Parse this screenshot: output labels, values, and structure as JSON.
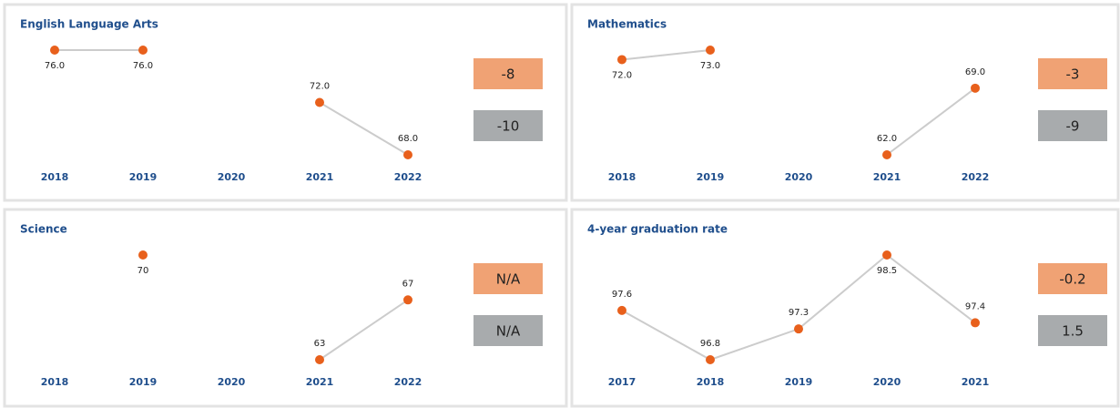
{
  "chart_data": [
    {
      "type": "line",
      "title": "English Language Arts",
      "categories": [
        "2018",
        "2019",
        "2020",
        "2021",
        "2022"
      ],
      "values": [
        76,
        76,
        null,
        72,
        68
      ],
      "value_labels": [
        "76.0",
        "76.0",
        null,
        "72.0",
        "68.0"
      ],
      "changes": [
        -8,
        -10
      ],
      "change_colors": [
        "#f0a274",
        "#a8abad"
      ],
      "color": "#e8601c"
    },
    {
      "type": "line",
      "title": "Mathematics",
      "categories": [
        "2018",
        "2019",
        "2020",
        "2021",
        "2022"
      ],
      "values": [
        72,
        73,
        null,
        62,
        69
      ],
      "value_labels": [
        "72.0",
        "73.0",
        null,
        "62.0",
        "69.0"
      ],
      "changes": [
        -3,
        -9
      ],
      "change_colors": [
        "#f0a274",
        "#a8abad"
      ],
      "color": "#e8601c"
    },
    {
      "type": "line",
      "title": "Science",
      "categories": [
        "2018",
        "2019",
        "2020",
        "2021",
        "2022"
      ],
      "values": [
        null,
        70,
        null,
        63,
        67
      ],
      "changes": [
        "N/A",
        "N/A"
      ],
      "change_colors": [
        "#f0a274",
        "#a8abad"
      ],
      "color": "#e8601c"
    },
    {
      "type": "line",
      "title": "4-year graduation rate",
      "categories": [
        "2017",
        "2018",
        "2019",
        "2020",
        "2021"
      ],
      "values": [
        97.6,
        96.8,
        97.3,
        98.5,
        97.4
      ],
      "changes": [
        -0.2,
        1.5
      ],
      "change_colors": [
        "#f0a274",
        "#a8abad"
      ],
      "color": "#e8601c"
    }
  ]
}
